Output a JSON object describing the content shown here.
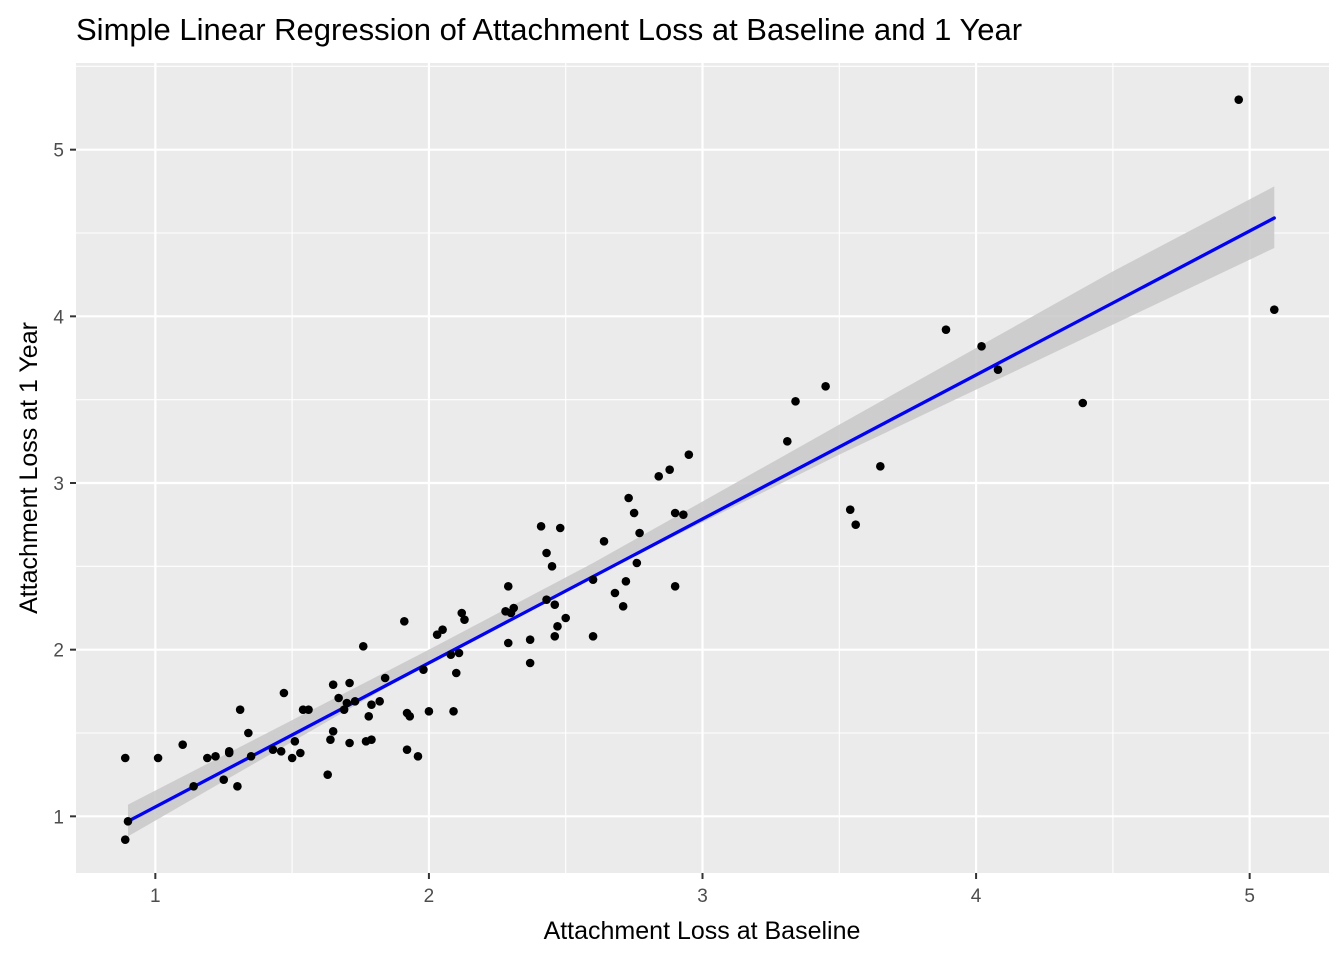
{
  "chart_data": {
    "type": "scatter",
    "title": "Simple Linear Regression of Attachment Loss at Baseline and 1 Year",
    "xlabel": "Attachment Loss at Baseline",
    "ylabel": "Attachment Loss at 1 Year",
    "xlim": [
      0.71,
      5.29
    ],
    "ylim": [
      0.66,
      5.52
    ],
    "x_ticks": [
      1,
      2,
      3,
      4,
      5
    ],
    "x_tick_labels": [
      "1",
      "2",
      "3",
      "4",
      "5"
    ],
    "y_ticks": [
      1,
      2,
      3,
      4,
      5
    ],
    "y_tick_labels": [
      "1",
      "2",
      "3",
      "4",
      "5"
    ],
    "grid": true,
    "colors": {
      "panel": "#ebebeb",
      "grid": "#ffffff",
      "point": "#000000",
      "fit_line": "#0000ff",
      "confidence_band": "#c8c8c8"
    },
    "points": [
      [
        0.89,
        1.35
      ],
      [
        0.89,
        0.86
      ],
      [
        0.9,
        0.97
      ],
      [
        1.01,
        1.35
      ],
      [
        1.1,
        1.43
      ],
      [
        1.14,
        1.18
      ],
      [
        1.19,
        1.35
      ],
      [
        1.22,
        1.36
      ],
      [
        1.25,
        1.22
      ],
      [
        1.27,
        1.39
      ],
      [
        1.27,
        1.38
      ],
      [
        1.3,
        1.18
      ],
      [
        1.31,
        1.64
      ],
      [
        1.34,
        1.5
      ],
      [
        1.35,
        1.36
      ],
      [
        1.43,
        1.4
      ],
      [
        1.46,
        1.39
      ],
      [
        1.47,
        1.74
      ],
      [
        1.5,
        1.35
      ],
      [
        1.51,
        1.45
      ],
      [
        1.53,
        1.38
      ],
      [
        1.54,
        1.64
      ],
      [
        1.56,
        1.64
      ],
      [
        1.63,
        1.25
      ],
      [
        1.64,
        1.46
      ],
      [
        1.65,
        1.79
      ],
      [
        1.65,
        1.51
      ],
      [
        1.67,
        1.71
      ],
      [
        1.69,
        1.64
      ],
      [
        1.7,
        1.68
      ],
      [
        1.71,
        1.8
      ],
      [
        1.71,
        1.44
      ],
      [
        1.73,
        1.69
      ],
      [
        1.76,
        2.02
      ],
      [
        1.77,
        1.45
      ],
      [
        1.78,
        1.6
      ],
      [
        1.79,
        1.46
      ],
      [
        1.79,
        1.67
      ],
      [
        1.82,
        1.69
      ],
      [
        1.84,
        1.83
      ],
      [
        1.91,
        2.17
      ],
      [
        1.92,
        1.62
      ],
      [
        1.92,
        1.4
      ],
      [
        1.93,
        1.6
      ],
      [
        1.96,
        1.36
      ],
      [
        1.98,
        1.88
      ],
      [
        2.0,
        1.63
      ],
      [
        2.03,
        2.09
      ],
      [
        2.05,
        2.12
      ],
      [
        2.08,
        1.97
      ],
      [
        2.09,
        1.63
      ],
      [
        2.1,
        1.86
      ],
      [
        2.11,
        1.98
      ],
      [
        2.12,
        2.22
      ],
      [
        2.13,
        2.18
      ],
      [
        2.28,
        2.23
      ],
      [
        2.29,
        2.38
      ],
      [
        2.29,
        2.04
      ],
      [
        2.3,
        2.22
      ],
      [
        2.31,
        2.25
      ],
      [
        2.37,
        2.06
      ],
      [
        2.37,
        1.92
      ],
      [
        2.41,
        2.74
      ],
      [
        2.43,
        2.3
      ],
      [
        2.43,
        2.58
      ],
      [
        2.45,
        2.5
      ],
      [
        2.46,
        2.27
      ],
      [
        2.46,
        2.08
      ],
      [
        2.47,
        2.14
      ],
      [
        2.48,
        2.73
      ],
      [
        2.5,
        2.19
      ],
      [
        2.6,
        2.42
      ],
      [
        2.6,
        2.08
      ],
      [
        2.64,
        2.65
      ],
      [
        2.68,
        2.34
      ],
      [
        2.71,
        2.26
      ],
      [
        2.72,
        2.41
      ],
      [
        2.73,
        2.91
      ],
      [
        2.75,
        2.82
      ],
      [
        2.76,
        2.52
      ],
      [
        2.77,
        2.7
      ],
      [
        2.84,
        3.04
      ],
      [
        2.88,
        3.08
      ],
      [
        2.9,
        2.82
      ],
      [
        2.9,
        2.38
      ],
      [
        2.93,
        2.81
      ],
      [
        2.95,
        3.17
      ],
      [
        3.31,
        3.25
      ],
      [
        3.34,
        3.49
      ],
      [
        3.45,
        3.58
      ],
      [
        3.54,
        2.84
      ],
      [
        3.56,
        2.75
      ],
      [
        3.65,
        3.1
      ],
      [
        3.89,
        3.92
      ],
      [
        4.02,
        3.82
      ],
      [
        4.08,
        3.68
      ],
      [
        4.39,
        3.48
      ],
      [
        4.96,
        5.3
      ],
      [
        5.09,
        4.04
      ]
    ],
    "fit_line": {
      "x": [
        0.9,
        5.09
      ],
      "y": [
        0.97,
        4.59
      ]
    },
    "confidence_band": [
      {
        "x": 0.9,
        "lower": 0.88,
        "upper": 1.07
      },
      {
        "x": 2.0,
        "lower": 1.92,
        "upper": 2.0
      },
      {
        "x": 2.6,
        "lower": 2.44,
        "upper": 2.52
      },
      {
        "x": 3.5,
        "lower": 3.17,
        "upper": 3.35
      },
      {
        "x": 4.5,
        "lower": 3.95,
        "upper": 4.27
      },
      {
        "x": 5.09,
        "lower": 4.41,
        "upper": 4.78
      }
    ]
  }
}
